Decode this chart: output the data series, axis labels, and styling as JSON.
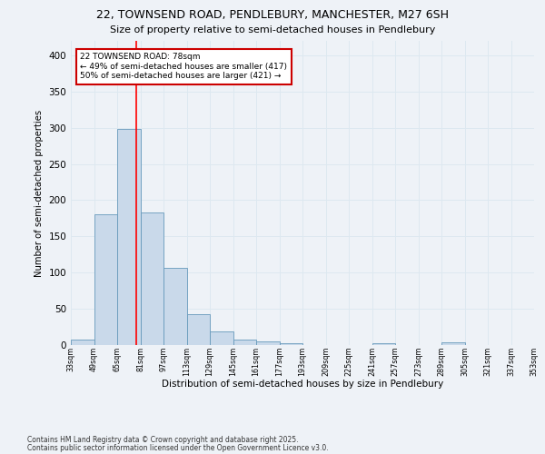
{
  "title_line1": "22, TOWNSEND ROAD, PENDLEBURY, MANCHESTER, M27 6SH",
  "title_line2": "Size of property relative to semi-detached houses in Pendlebury",
  "xlabel": "Distribution of semi-detached houses by size in Pendlebury",
  "ylabel": "Number of semi-detached properties",
  "footnote1": "Contains HM Land Registry data © Crown copyright and database right 2025.",
  "footnote2": "Contains public sector information licensed under the Open Government Licence v3.0.",
  "annotation_line1": "22 TOWNSEND ROAD: 78sqm",
  "annotation_line2": "← 49% of semi-detached houses are smaller (417)",
  "annotation_line3": "50% of semi-detached houses are larger (421) →",
  "bar_values": [
    7,
    180,
    298,
    183,
    107,
    43,
    19,
    8,
    5,
    3,
    0,
    0,
    0,
    2,
    0,
    0,
    4,
    0,
    0,
    0
  ],
  "bin_labels": [
    "33sqm",
    "49sqm",
    "65sqm",
    "81sqm",
    "97sqm",
    "113sqm",
    "129sqm",
    "145sqm",
    "161sqm",
    "177sqm",
    "193sqm",
    "209sqm",
    "225sqm",
    "241sqm",
    "257sqm",
    "273sqm",
    "289sqm",
    "305sqm",
    "321sqm",
    "337sqm",
    "353sqm"
  ],
  "bar_color": "#c9d9ea",
  "bar_edge_color": "#6699bb",
  "grid_color": "#dde8f0",
  "annotation_box_edge": "#cc0000",
  "ylim": [
    0,
    420
  ],
  "yticks": [
    0,
    50,
    100,
    150,
    200,
    250,
    300,
    350,
    400
  ],
  "background_color": "#eef2f7"
}
